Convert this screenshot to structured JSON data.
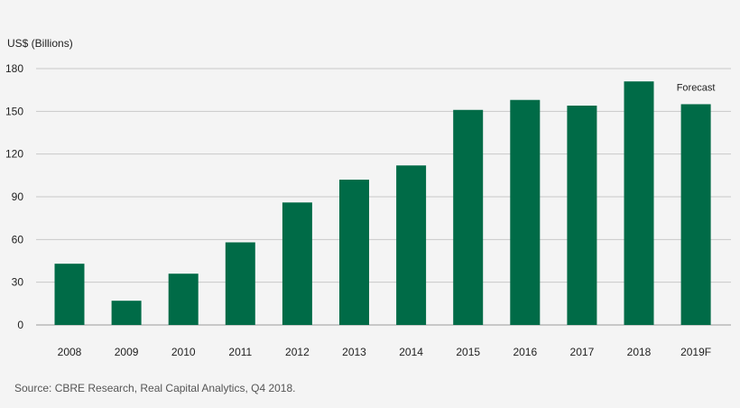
{
  "chart_data": {
    "type": "bar",
    "ylabel": "US$ (Billions)",
    "categories": [
      "2008",
      "2009",
      "2010",
      "2011",
      "2012",
      "2013",
      "2014",
      "2015",
      "2016",
      "2017",
      "2018",
      "2019F"
    ],
    "values": [
      43,
      17,
      36,
      58,
      86,
      102,
      112,
      151,
      158,
      154,
      171,
      155
    ],
    "ylim": [
      0,
      180
    ],
    "yticks": [
      0,
      30,
      60,
      90,
      120,
      150,
      180
    ],
    "grid": true,
    "bar_color": "#006b47",
    "annotations": [
      {
        "category": "2019F",
        "text": "Forecast"
      }
    ]
  },
  "source": "Source: CBRE Research, Real Capital Analytics, Q4 2018."
}
